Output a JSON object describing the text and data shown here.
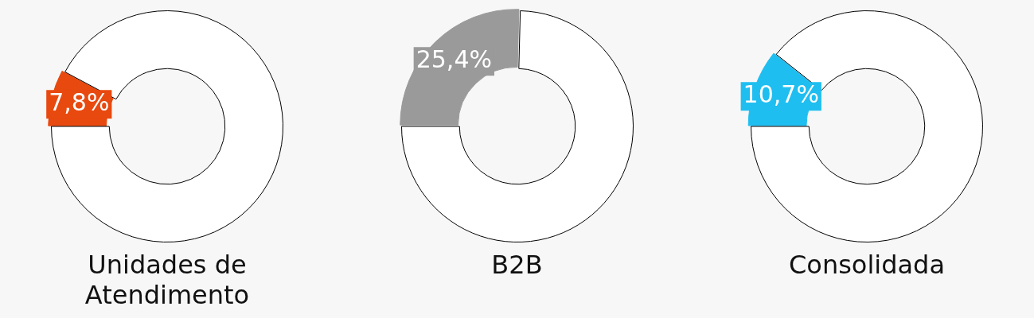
{
  "chart_data": [
    {
      "type": "donut",
      "title": "Unidades de Atendimento",
      "categories": [
        null,
        null
      ],
      "values": [
        7.8,
        92.2
      ],
      "colors": [
        "#e8490f",
        "#ffffff"
      ],
      "value_labels": [
        "7,8%",
        null
      ]
    },
    {
      "type": "donut",
      "title": "B2B",
      "categories": [
        null,
        null
      ],
      "values": [
        25.4,
        74.6
      ],
      "colors": [
        "#9a9a9a",
        "#ffffff"
      ],
      "value_labels": [
        "25,4%",
        null
      ]
    },
    {
      "type": "donut",
      "title": "Consolidada",
      "categories": [
        null,
        null
      ],
      "values": [
        10.7,
        89.3
      ],
      "colors": [
        "#1fbef0",
        "#ffffff"
      ],
      "value_labels": [
        "10,7%",
        null
      ]
    }
  ]
}
